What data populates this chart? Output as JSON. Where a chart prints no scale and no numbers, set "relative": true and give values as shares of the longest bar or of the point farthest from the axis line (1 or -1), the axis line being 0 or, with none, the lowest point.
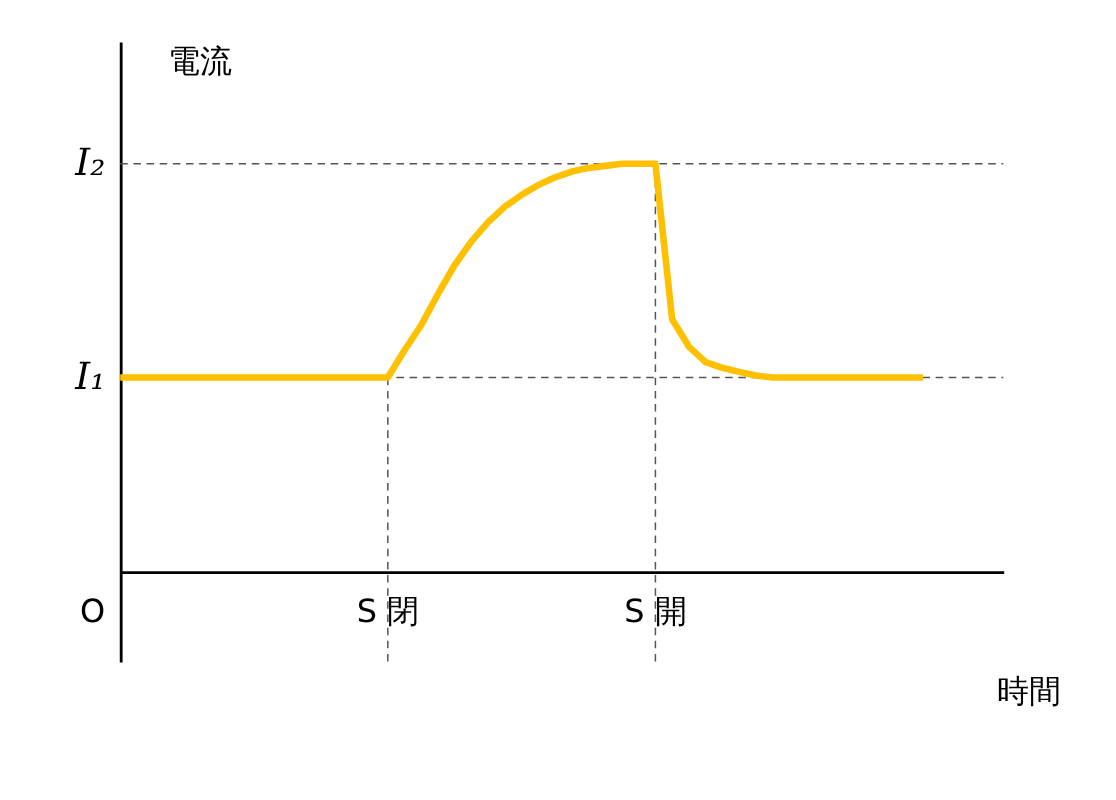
{
  "chart_data": {
    "type": "line",
    "relative": true,
    "xlabel": "時間",
    "ylabel": "電流",
    "categories": [
      null,
      null,
      null,
      null,
      null,
      null,
      null,
      null,
      null,
      null,
      null,
      null,
      null,
      null,
      null,
      null,
      null,
      null,
      null,
      null,
      null,
      null,
      null,
      null,
      null,
      null,
      null,
      null,
      null,
      null,
      null,
      null,
      null,
      null,
      null,
      null,
      null,
      null,
      null,
      null,
      null,
      null,
      null,
      null,
      null,
      null,
      null,
      null,
      null
    ],
    "series": [
      {
        "color": "#ffc000",
        "values": [
          0.476,
          0.476,
          0.476,
          0.476,
          0.476,
          0.476,
          0.476,
          0.476,
          0.476,
          0.476,
          0.476,
          0.476,
          0.476,
          0.476,
          0.476,
          0.476,
          0.476,
          0.543,
          0.605,
          0.681,
          0.752,
          0.81,
          0.857,
          0.895,
          0.924,
          0.948,
          0.967,
          0.981,
          0.99,
          0.995,
          1,
          1,
          1,
          0.619,
          0.552,
          0.514,
          0.5,
          0.49,
          0.481,
          0.476,
          0.476,
          0.476,
          0.476,
          0.476,
          0.476,
          0.476,
          0.476,
          0.476,
          0.476
        ]
      }
    ],
    "annotations": [
      "O",
      "S 閉",
      "S 開"
    ],
    "ref_lines": [
      {
        "axis": "y",
        "value": 1,
        "label": "I₂",
        "color": "#555555",
        "line_style": "dashed"
      },
      {
        "axis": "y",
        "value": 0.476,
        "label": "I₁",
        "color": "#555555",
        "line_style": "dashed"
      }
    ],
    "marker": "none",
    "line_style": "solid"
  }
}
